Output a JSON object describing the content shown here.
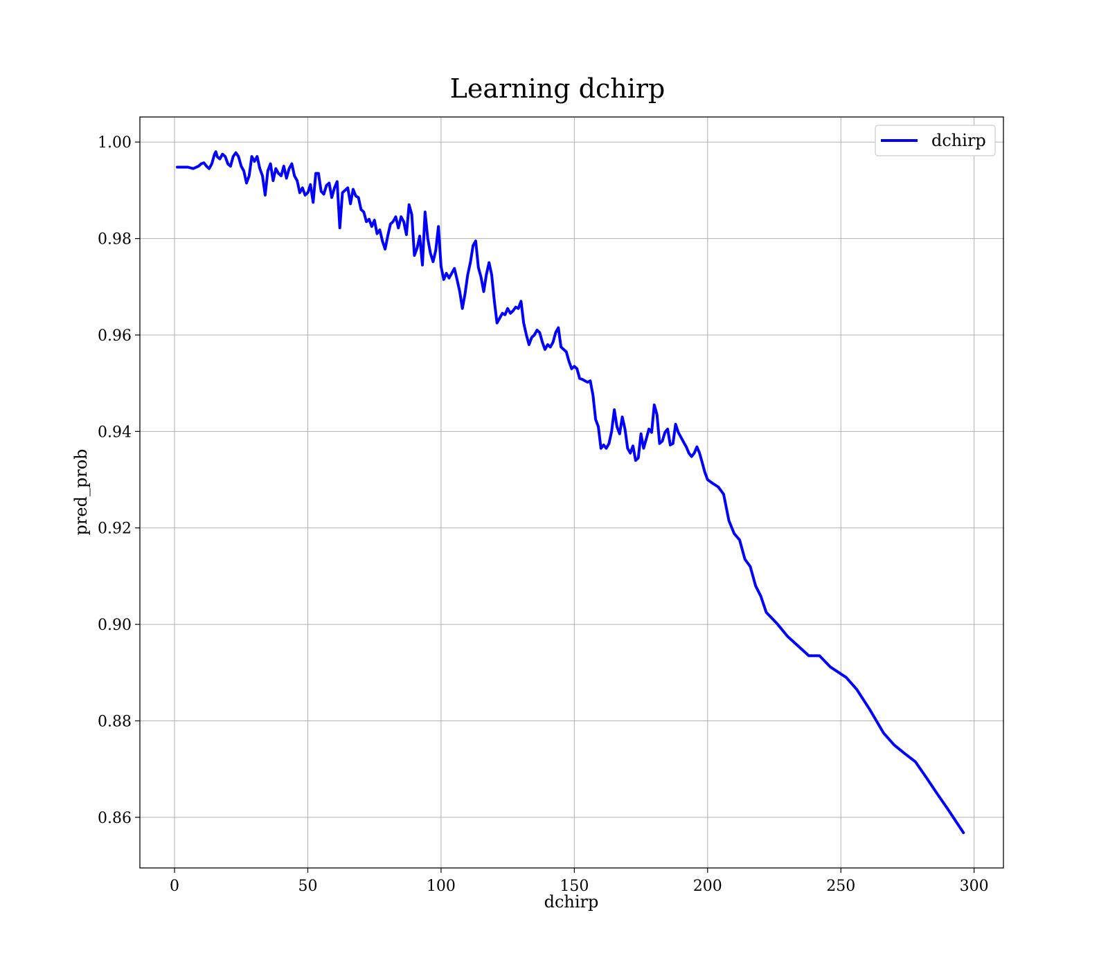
{
  "chart_data": {
    "type": "line",
    "title": "Learning dchirp",
    "xlabel": "dchirp",
    "ylabel": "pred_prob",
    "xlim": [
      -13,
      311
    ],
    "ylim": [
      0.8495,
      1.0052
    ],
    "xticks": [
      0,
      50,
      100,
      150,
      200,
      250,
      300
    ],
    "yticks": [
      0.86,
      0.88,
      0.9,
      0.92,
      0.94,
      0.96,
      0.98,
      1.0
    ],
    "xtick_labels": [
      "0",
      "50",
      "100",
      "150",
      "200",
      "250",
      "300"
    ],
    "ytick_labels": [
      "0.86",
      "0.88",
      "0.90",
      "0.92",
      "0.94",
      "0.96",
      "0.98",
      "1.00"
    ],
    "grid": true,
    "legend": {
      "position": "top-right",
      "entries": [
        "dchirp"
      ]
    },
    "series": [
      {
        "name": "dchirp",
        "color": "#0000ff",
        "x": [
          1,
          3,
          5,
          7,
          9,
          10,
          11,
          12,
          13,
          14,
          15,
          15.5,
          16,
          17,
          18,
          19,
          20,
          21,
          22,
          23,
          24,
          25,
          26,
          27,
          28,
          29,
          30,
          31,
          32,
          33,
          34,
          35,
          36,
          37,
          38,
          39,
          40,
          41,
          42,
          43,
          44,
          45,
          46,
          47,
          48,
          49,
          50,
          51,
          52,
          53,
          54,
          55,
          56,
          57,
          58,
          59,
          60,
          61,
          62,
          63,
          64,
          65,
          66,
          67,
          68,
          69,
          70,
          71,
          72,
          73,
          74,
          75,
          76,
          77,
          78,
          79,
          80,
          81,
          82,
          83,
          84,
          85,
          86,
          87,
          88,
          89,
          90,
          91,
          92,
          93,
          94,
          95,
          96,
          97,
          98,
          99,
          100,
          101,
          102,
          103,
          104,
          105,
          106,
          107,
          108,
          109,
          110,
          111,
          112,
          113,
          114,
          115,
          116,
          117,
          118,
          119,
          120,
          121,
          122,
          123,
          124,
          125,
          126,
          127,
          128,
          129,
          130,
          131,
          132,
          133,
          134,
          135,
          136,
          137,
          138,
          139,
          140,
          141,
          142,
          143,
          144,
          145,
          146,
          147,
          148,
          149,
          150,
          151,
          152,
          153,
          154,
          155,
          156,
          157,
          158,
          159,
          160,
          161,
          162,
          163,
          164,
          165,
          166,
          167,
          168,
          169,
          170,
          171,
          172,
          173,
          174,
          175,
          176,
          177,
          178,
          179,
          180,
          181,
          182,
          183,
          184,
          185,
          186,
          187,
          188,
          189,
          190,
          191,
          192,
          193,
          194,
          195,
          196,
          197,
          198,
          199,
          200,
          202,
          204,
          206,
          208,
          210,
          212,
          214,
          216,
          218,
          220,
          222,
          226,
          230,
          234,
          238,
          242,
          246,
          252,
          256,
          261,
          266,
          270,
          274,
          278,
          282,
          286,
          290,
          296
        ],
        "y": [
          0.9948,
          0.9948,
          0.9948,
          0.9945,
          0.995,
          0.9955,
          0.9957,
          0.995,
          0.9945,
          0.9955,
          0.9975,
          0.998,
          0.997,
          0.9965,
          0.9975,
          0.997,
          0.9955,
          0.995,
          0.997,
          0.9978,
          0.997,
          0.995,
          0.994,
          0.9915,
          0.993,
          0.997,
          0.996,
          0.997,
          0.9945,
          0.993,
          0.989,
          0.994,
          0.9955,
          0.992,
          0.9945,
          0.9935,
          0.993,
          0.995,
          0.9925,
          0.9945,
          0.9955,
          0.993,
          0.992,
          0.9895,
          0.9905,
          0.989,
          0.9895,
          0.9912,
          0.9875,
          0.9935,
          0.9935,
          0.9898,
          0.9892,
          0.991,
          0.9915,
          0.9885,
          0.9905,
          0.9918,
          0.9822,
          0.9895,
          0.99,
          0.9905,
          0.9872,
          0.9902,
          0.9888,
          0.9885,
          0.986,
          0.9855,
          0.9835,
          0.984,
          0.9825,
          0.9838,
          0.981,
          0.9818,
          0.9795,
          0.9778,
          0.9805,
          0.983,
          0.9835,
          0.9845,
          0.9822,
          0.9845,
          0.9835,
          0.9808,
          0.987,
          0.985,
          0.9765,
          0.978,
          0.9805,
          0.9745,
          0.9855,
          0.98,
          0.977,
          0.9752,
          0.9775,
          0.9825,
          0.9742,
          0.9715,
          0.9728,
          0.9718,
          0.9728,
          0.9738,
          0.9715,
          0.969,
          0.9655,
          0.9685,
          0.9725,
          0.975,
          0.9785,
          0.9795,
          0.974,
          0.972,
          0.969,
          0.9725,
          0.975,
          0.9725,
          0.967,
          0.9625,
          0.9635,
          0.9645,
          0.9642,
          0.9655,
          0.9645,
          0.965,
          0.9658,
          0.9655,
          0.967,
          0.9625,
          0.96,
          0.958,
          0.9595,
          0.96,
          0.961,
          0.9605,
          0.9585,
          0.957,
          0.958,
          0.9575,
          0.9585,
          0.9605,
          0.9615,
          0.9575,
          0.957,
          0.9565,
          0.9545,
          0.953,
          0.9535,
          0.953,
          0.951,
          0.9508,
          0.9505,
          0.9502,
          0.9505,
          0.9475,
          0.9425,
          0.941,
          0.9365,
          0.9372,
          0.9365,
          0.9375,
          0.94,
          0.9445,
          0.941,
          0.9395,
          0.943,
          0.9405,
          0.9365,
          0.9355,
          0.937,
          0.934,
          0.9345,
          0.9395,
          0.9365,
          0.9385,
          0.9405,
          0.9398,
          0.9455,
          0.9435,
          0.9375,
          0.938,
          0.9398,
          0.9405,
          0.9372,
          0.9375,
          0.9415,
          0.9398,
          0.9388,
          0.9378,
          0.9368,
          0.9355,
          0.9348,
          0.9355,
          0.9368,
          0.9355,
          0.9335,
          0.9315,
          0.93,
          0.9292,
          0.9285,
          0.927,
          0.9215,
          0.9188,
          0.9175,
          0.9135,
          0.912,
          0.908,
          0.9058,
          0.9025,
          0.9002,
          0.8975,
          0.8955,
          0.8935,
          0.8935,
          0.8912,
          0.889,
          0.8865,
          0.8822,
          0.8775,
          0.875,
          0.8732,
          0.8715,
          0.8683,
          0.865,
          0.8618,
          0.8568
        ]
      }
    ]
  }
}
